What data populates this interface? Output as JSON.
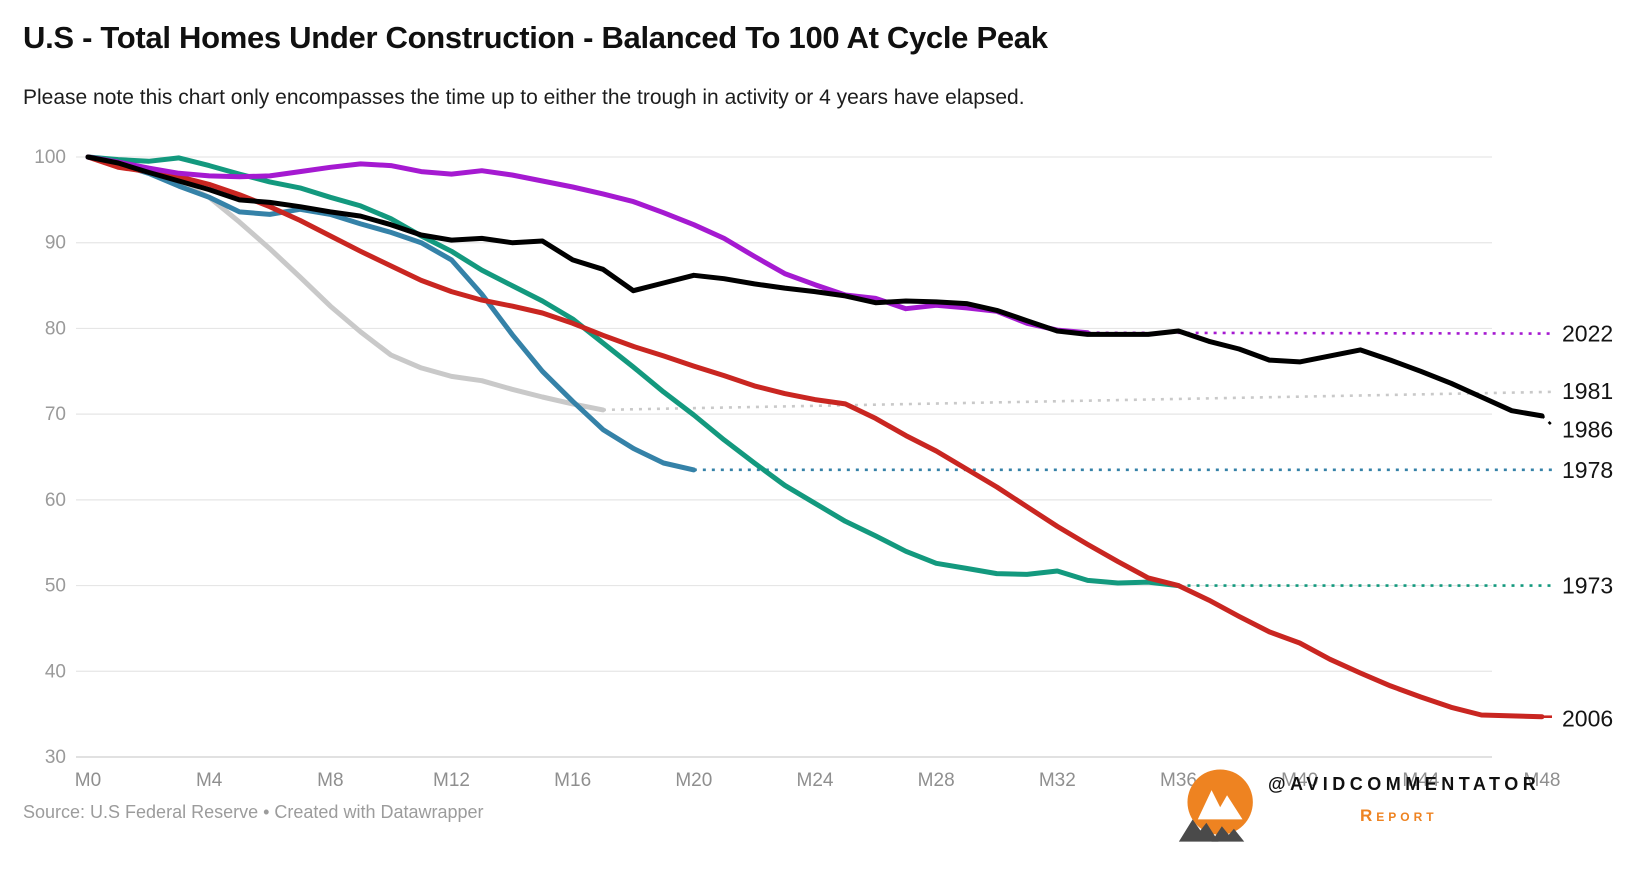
{
  "footer": {
    "source": "Source: U.S Federal Reserve • Created with Datawrapper",
    "brand_handle": "@AVIDCOMMENTATOR",
    "brand_sub": "Report"
  },
  "brand_colors": {
    "logo_orange": "#ee8321",
    "logo_dark": "#4a4a4a"
  },
  "chart_data": {
    "type": "line",
    "title": "U.S - Total Homes Under Construction - Balanced To 100 At Cycle Peak",
    "subtitle": "Please note this chart only encompasses the time up to either the trough in activity or 4 years have elapsed.",
    "x_unit": "months since cycle peak",
    "xlim": [
      0,
      48
    ],
    "ylim": [
      30,
      100
    ],
    "grid": "horizontal",
    "legend_position": "end-of-line-labels-right",
    "y_ticks": [
      30,
      40,
      50,
      60,
      70,
      80,
      90,
      100
    ],
    "x_ticks": [
      {
        "month": 0,
        "label": "M0"
      },
      {
        "month": 4,
        "label": "M4"
      },
      {
        "month": 8,
        "label": "M8"
      },
      {
        "month": 12,
        "label": "M12"
      },
      {
        "month": 16,
        "label": "M16"
      },
      {
        "month": 20,
        "label": "M20"
      },
      {
        "month": 24,
        "label": "M24"
      },
      {
        "month": 28,
        "label": "M28"
      },
      {
        "month": 32,
        "label": "M32"
      },
      {
        "month": 36,
        "label": "M36"
      },
      {
        "month": 40,
        "label": "M40"
      },
      {
        "month": 44,
        "label": "M44"
      },
      {
        "month": 48,
        "label": "M48"
      }
    ],
    "series": [
      {
        "name": "1981",
        "color": "#c9c9c9",
        "start_month": 0,
        "label_value": 72.7,
        "leader": {
          "style": "dashed",
          "from_month": 17,
          "from_value": 70.5,
          "to_value": 72.6
        },
        "values": [
          100,
          99.2,
          98.2,
          97.0,
          95.3,
          92.4,
          89.3,
          86.0,
          82.6,
          79.6,
          76.9,
          75.4,
          74.4,
          73.9,
          72.9,
          72.0,
          71.2,
          70.5
        ]
      },
      {
        "name": "1978",
        "color": "#3582a8",
        "start_month": 0,
        "label_value": 63.5,
        "leader": {
          "style": "dashed",
          "from_month": 20,
          "from_value": 63.5,
          "to_value": 63.5
        },
        "values": [
          100,
          99.2,
          98.1,
          96.6,
          95.3,
          93.6,
          93.3,
          93.9,
          93.3,
          92.2,
          91.2,
          90.0,
          88.0,
          84.0,
          79.3,
          75.0,
          71.5,
          68.2,
          66.0,
          64.3,
          63.5
        ]
      },
      {
        "name": "1973",
        "color": "#13997e",
        "start_month": 0,
        "label_value": 50.0,
        "leader": {
          "style": "dashed",
          "from_month": 36,
          "from_value": 50.0,
          "to_value": 50.0
        },
        "values": [
          100,
          99.7,
          99.5,
          99.9,
          99.0,
          98.0,
          97.1,
          96.4,
          95.3,
          94.3,
          92.8,
          90.8,
          89.0,
          86.8,
          85.0,
          83.2,
          81.1,
          78.3,
          75.5,
          72.6,
          69.9,
          67.0,
          64.3,
          61.7,
          59.6,
          57.5,
          55.8,
          54.0,
          52.6,
          52.0,
          51.4,
          51.3,
          51.7,
          50.6,
          50.3,
          50.4,
          50.0
        ]
      },
      {
        "name": "2006",
        "color": "#c92621",
        "start_month": 0,
        "label_value": 34.5,
        "leader": {
          "style": "solid",
          "from_month": 48,
          "from_value": 34.7,
          "to_value": 34.7
        },
        "values": [
          100,
          98.8,
          98.3,
          97.7,
          96.8,
          95.6,
          94.2,
          92.6,
          90.8,
          89.0,
          87.3,
          85.6,
          84.3,
          83.3,
          82.6,
          81.8,
          80.6,
          79.2,
          77.9,
          76.8,
          75.6,
          74.5,
          73.3,
          72.4,
          71.7,
          71.2,
          69.5,
          67.5,
          65.7,
          63.6,
          61.5,
          59.2,
          56.9,
          54.8,
          52.8,
          50.9,
          50.0,
          48.3,
          46.4,
          44.6,
          43.3,
          41.4,
          39.8,
          38.3,
          37.0,
          35.8,
          34.9,
          34.8,
          34.7
        ]
      },
      {
        "name": "2022",
        "color": "#a51ad1",
        "start_month": 0,
        "label_value": 79.4,
        "leader": {
          "style": "dashed",
          "from_month": 33,
          "from_value": 79.5,
          "to_value": 79.4
        },
        "values": [
          100,
          99.4,
          98.7,
          98.1,
          97.8,
          97.7,
          97.8,
          98.3,
          98.8,
          99.2,
          99.0,
          98.3,
          98.0,
          98.4,
          97.9,
          97.2,
          96.5,
          95.7,
          94.8,
          93.5,
          92.1,
          90.5,
          88.4,
          86.4,
          85.1,
          83.9,
          83.5,
          82.3,
          82.7,
          82.4,
          82.0,
          80.6,
          79.8,
          79.5
        ]
      },
      {
        "name": "1986",
        "color": "#000000",
        "start_month": 0,
        "label_value": 68.2,
        "leader": {
          "style": "dashed",
          "from_month": 48,
          "from_value": 69.8,
          "to_value": 68.5,
          "to_x": 1554
        },
        "values": [
          100,
          99.3,
          98.2,
          97.2,
          96.2,
          95.0,
          94.7,
          94.2,
          93.6,
          93.1,
          92.1,
          90.9,
          90.3,
          90.5,
          90.0,
          90.2,
          88.0,
          86.9,
          84.4,
          85.3,
          86.2,
          85.8,
          85.2,
          84.7,
          84.3,
          83.8,
          83.0,
          83.2,
          83.1,
          82.9,
          82.1,
          80.9,
          79.7,
          79.3,
          79.3,
          79.3,
          79.7,
          78.5,
          77.6,
          76.3,
          76.1,
          76.8,
          77.5,
          76.3,
          75.0,
          73.6,
          72.0,
          70.4,
          69.8
        ]
      }
    ]
  }
}
